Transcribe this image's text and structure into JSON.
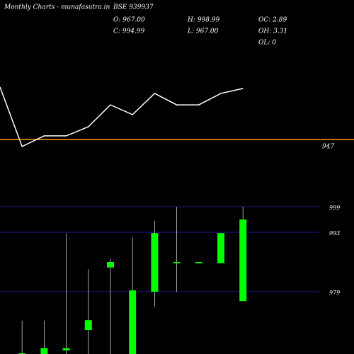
{
  "header": {
    "site": "Monthly Charts",
    "source": "- munafasutra.in",
    "symbol": "BSE 939937",
    "open": "O: 967.00",
    "high": "H: 998.99",
    "oc": "OC: 2.89",
    "close": "C: 994.99",
    "low": "L: 967.00",
    "oh": "OH: 3.31",
    "ol": "OL: 0"
  },
  "chart_data": [
    {
      "type": "line",
      "color": "#ffffff",
      "values": [
        971.7,
        943.7,
        948.7,
        948.7,
        953,
        963.3,
        958.7,
        968.7,
        963.3,
        963.3,
        968.7,
        971
      ],
      "ylim": [
        930,
        990
      ],
      "hline": 947,
      "hline_color": "#ff9900"
    },
    {
      "type": "candlestick",
      "color": "#00ff00",
      "grid_color": "#1a1a8c",
      "open": [
        964.3,
        964.3,
        965.2,
        970,
        984.7,
        964.3,
        979,
        985.7,
        985.7,
        985.7,
        976.8
      ],
      "high": [
        972.2,
        972.2,
        992.7,
        984.3,
        986.8,
        991.8,
        995.7,
        999,
        986,
        992.8,
        999
      ],
      "low": [
        964.3,
        964.3,
        964.3,
        964.3,
        964.3,
        964.3,
        975.5,
        979,
        985.7,
        985.7,
        976.8
      ],
      "close": [
        964.5,
        965.7,
        965.7,
        972.3,
        986,
        979.3,
        992.8,
        986,
        986,
        992.8,
        996
      ],
      "ylim": [
        964,
        1000
      ],
      "yticks": [
        999,
        993,
        979
      ]
    }
  ]
}
